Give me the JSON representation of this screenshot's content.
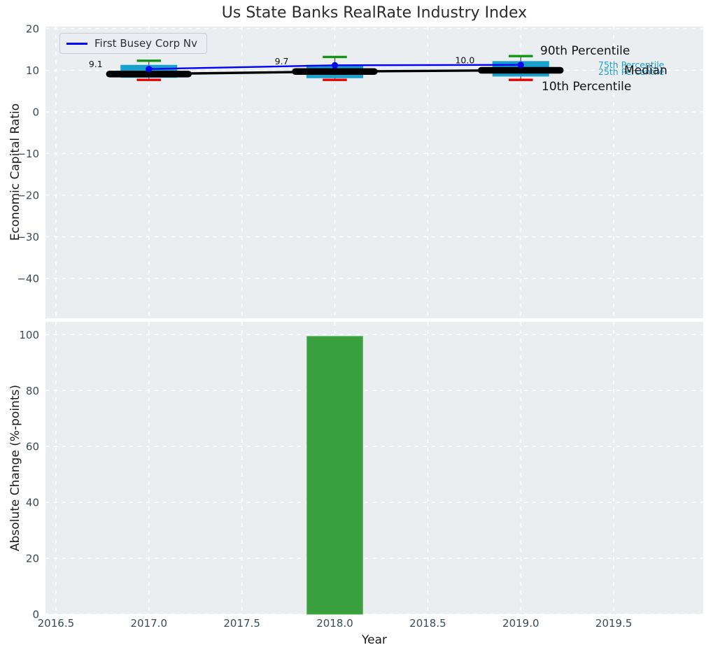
{
  "figure": {
    "title": "Us State Banks RealRate Industry Index",
    "background": "#ffffff",
    "axes_background": "#eaeef0",
    "grid_color": "#ffffff",
    "tick_color": "#3a4b5c"
  },
  "legend": {
    "label": "First Busey Corp Nv",
    "line_color": "#0000f5"
  },
  "chart_data": [
    {
      "type": "boxplot",
      "title": "Us State Banks RealRate Industry Index",
      "ylabel": "Economic Capital Ratio",
      "xlim": [
        2016.444,
        2019.981
      ],
      "ylim": [
        -49.6,
        20.5
      ],
      "yticks": [
        20,
        10,
        0,
        -10,
        -20,
        -30,
        -40
      ],
      "ytick_labels": [
        "20",
        "10",
        "0",
        "−10",
        "−20",
        "−30",
        "−40"
      ],
      "xgridlines": [
        2016.5,
        2017.0,
        2017.5,
        2018.0,
        2018.5,
        2019.0,
        2019.5
      ],
      "grid": true,
      "legend_position": "upper left",
      "categories_x": [
        2017,
        2018,
        2019
      ],
      "box": {
        "p90": [
          12.3,
          13.2,
          13.4
        ],
        "p75": [
          11.3,
          11.3,
          12.2
        ],
        "median": [
          9.1,
          9.7,
          10.0
        ],
        "p25": [
          8.2,
          8.1,
          8.5
        ],
        "p10": [
          7.7,
          7.7,
          7.7
        ],
        "box_color": "#18a1cd",
        "cap_high_color": "#149414",
        "cap_low_color": "#e50000",
        "median_color": "#000000",
        "whisker_color": "#555555",
        "box_width": 0.305,
        "cap_width": 0.13,
        "median_width": 0.425
      },
      "series": [
        {
          "name": "First Busey Corp Nv",
          "x": [
            2017,
            2018,
            2019
          ],
          "values": [
            10.3,
            11.2,
            11.3
          ],
          "color": "#0000f5",
          "marker": "circle"
        }
      ],
      "median_labels": [
        "9.1",
        "9.7",
        "10.0"
      ],
      "annotations": [
        {
          "id": "p90",
          "text": "90th Percentile",
          "color": "#111111",
          "size": 17
        },
        {
          "id": "p75",
          "text": "75th Percentile",
          "color": "#18a1cd",
          "size": 12.5
        },
        {
          "id": "p25",
          "text": "25th Percentile",
          "color": "#18a1cd",
          "size": 12.5
        },
        {
          "id": "median",
          "text": "Median",
          "color": "#111111",
          "size": 17
        },
        {
          "id": "p10",
          "text": "10th Percentile",
          "color": "#111111",
          "size": 17
        }
      ]
    },
    {
      "type": "bar",
      "xlabel": "Year",
      "ylabel": "Absolute Change (%-points)",
      "xlim": [
        2016.444,
        2019.981
      ],
      "ylim": [
        0,
        104.6
      ],
      "yticks": [
        0,
        20,
        40,
        60,
        80,
        100
      ],
      "ytick_labels": [
        "0",
        "20",
        "40",
        "60",
        "80",
        "100"
      ],
      "xticks": [
        2016.5,
        2017.0,
        2017.5,
        2018.0,
        2018.5,
        2019.0,
        2019.5
      ],
      "xtick_labels": [
        "2016.5",
        "2017.0",
        "2017.5",
        "2018.0",
        "2018.5",
        "2019.0",
        "2019.5"
      ],
      "x": [
        2018
      ],
      "values": [
        99.4
      ],
      "bar_width": 0.3,
      "bar_color": "#3aa03e",
      "bar_edge_color": "#57b05a",
      "grid": true
    }
  ]
}
